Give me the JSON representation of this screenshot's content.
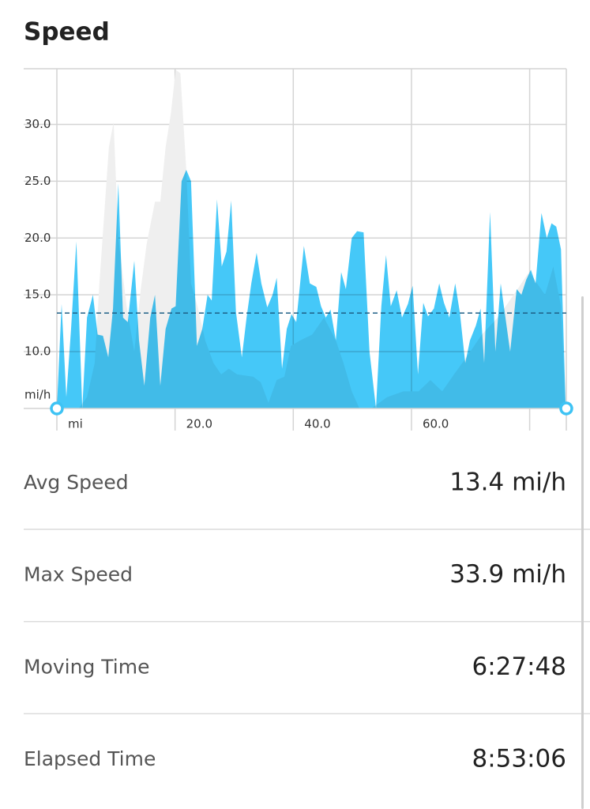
{
  "title": "Speed",
  "chart_data": {
    "type": "area",
    "xlim": [
      0,
      86.2
    ],
    "ylim": [
      5,
      34.9
    ],
    "x_label": "mi",
    "y_label": "mi/h",
    "xticks": [
      {
        "value": 20,
        "label": "20.0"
      },
      {
        "value": 40,
        "label": "40.0"
      },
      {
        "value": 60,
        "label": "60.0"
      }
    ],
    "xgrid": [
      0,
      20,
      40,
      60,
      80
    ],
    "yticks": [
      {
        "value": 10,
        "label": "10.0"
      },
      {
        "value": 15,
        "label": "15.0"
      },
      {
        "value": 20,
        "label": "20.0"
      },
      {
        "value": 25,
        "label": "25.0"
      },
      {
        "value": 30,
        "label": "30.0"
      }
    ],
    "grid": true,
    "average": 13.4,
    "average_color": "#1d5f86",
    "series": [
      {
        "color": "#efefef",
        "x": [
          0,
          3.7,
          5.1,
          6.4,
          7.2,
          8.0,
          8.8,
          9.6,
          10.4,
          11.8,
          13.1,
          14.2,
          15.2,
          16.6,
          17.5,
          18.4,
          19.3,
          20.1,
          20.9,
          21.9,
          22.7,
          23.8,
          25.1,
          26.5,
          27.8,
          29.1,
          30.5,
          33.2,
          34.5,
          35.8,
          37.2,
          38.5,
          39.6,
          41.2,
          43.2,
          45.2,
          47.2,
          48.5,
          49.9,
          51.2,
          53.2,
          55.9,
          58.6,
          61.2,
          63.2,
          65.2,
          67.2,
          69.3,
          71.9,
          74.6,
          77.3,
          79.9,
          82.6,
          84.0,
          85.3,
          86.1
        ],
        "values": [
          5,
          5,
          6,
          9,
          16,
          22,
          28,
          30.2,
          20,
          14,
          10,
          15.5,
          19.5,
          23.2,
          23.2,
          28,
          31,
          34.8,
          34.5,
          26,
          16,
          14,
          11,
          9,
          8,
          8.5,
          8,
          7.8,
          7.3,
          5.5,
          7.5,
          7.8,
          10.5,
          11,
          11.5,
          13,
          11,
          9,
          6.5,
          5,
          5,
          6,
          6.5,
          6.5,
          7.5,
          6.5,
          8,
          9.5,
          11.5,
          13,
          15,
          17,
          15,
          17.5,
          14,
          5
        ]
      },
      {
        "color": "#45c8f8",
        "x": [
          0,
          0.8,
          1.6,
          2.4,
          3.3,
          4.3,
          5.1,
          6.1,
          6.9,
          7.8,
          8.7,
          9.5,
          10.4,
          11.2,
          12.0,
          13.1,
          13.9,
          14.8,
          15.8,
          16.6,
          17.5,
          18.4,
          19.4,
          20.1,
          21.1,
          21.9,
          22.7,
          23.7,
          24.6,
          25.5,
          26.2,
          27.1,
          27.9,
          28.7,
          29.5,
          30.3,
          31.3,
          32.1,
          32.9,
          33.8,
          34.6,
          35.6,
          36.5,
          37.2,
          38.1,
          38.9,
          39.7,
          40.5,
          41.8,
          42.8,
          43.9,
          44.7,
          45.5,
          46.3,
          47.2,
          48.1,
          48.9,
          49.9,
          50.8,
          51.9,
          52.9,
          54.0,
          54.9,
          55.7,
          56.5,
          57.5,
          58.4,
          59.4,
          60.2,
          61.1,
          62.0,
          62.8,
          63.8,
          64.7,
          65.5,
          66.4,
          67.4,
          68.2,
          69.1,
          69.9,
          70.9,
          71.7,
          72.3,
          73.3,
          74.2,
          75.1,
          75.9,
          76.7,
          77.8,
          78.6,
          79.4,
          80.2,
          81.0,
          82.0,
          82.9,
          83.7,
          84.5,
          85.3,
          86.1
        ],
        "values": [
          5,
          14.2,
          6,
          12,
          19.7,
          5,
          13,
          15,
          11.5,
          11.4,
          9.5,
          13.8,
          24.8,
          13,
          12.6,
          18,
          11,
          7,
          13,
          15,
          7,
          12,
          13.8,
          14,
          25,
          26,
          25,
          10.5,
          12,
          15,
          14.5,
          23.4,
          17.5,
          18.8,
          23.3,
          13.5,
          9.5,
          13,
          16,
          18.7,
          16,
          13.9,
          15,
          16.5,
          8.5,
          12,
          13.3,
          12.6,
          19.3,
          16,
          15.7,
          14,
          13,
          13.7,
          11,
          17,
          15.5,
          20,
          20.6,
          20.5,
          10,
          5,
          14,
          18.5,
          14,
          15.4,
          13,
          14.2,
          15.8,
          8,
          14.3,
          13.1,
          13.8,
          16,
          14.3,
          13,
          16,
          13.4,
          9,
          11,
          12.3,
          13.8,
          9,
          22.3,
          10,
          16,
          13,
          10,
          15.5,
          15,
          16.3,
          17.2,
          16,
          22.2,
          20,
          21.3,
          21,
          19,
          5
        ]
      }
    ]
  },
  "stats": [
    {
      "label": "Avg Speed",
      "value": "13.4 mi/h"
    },
    {
      "label": "Max Speed",
      "value": "33.9 mi/h"
    },
    {
      "label": "Moving Time",
      "value": "6:27:48"
    },
    {
      "label": "Elapsed Time",
      "value": "8:53:06"
    }
  ]
}
